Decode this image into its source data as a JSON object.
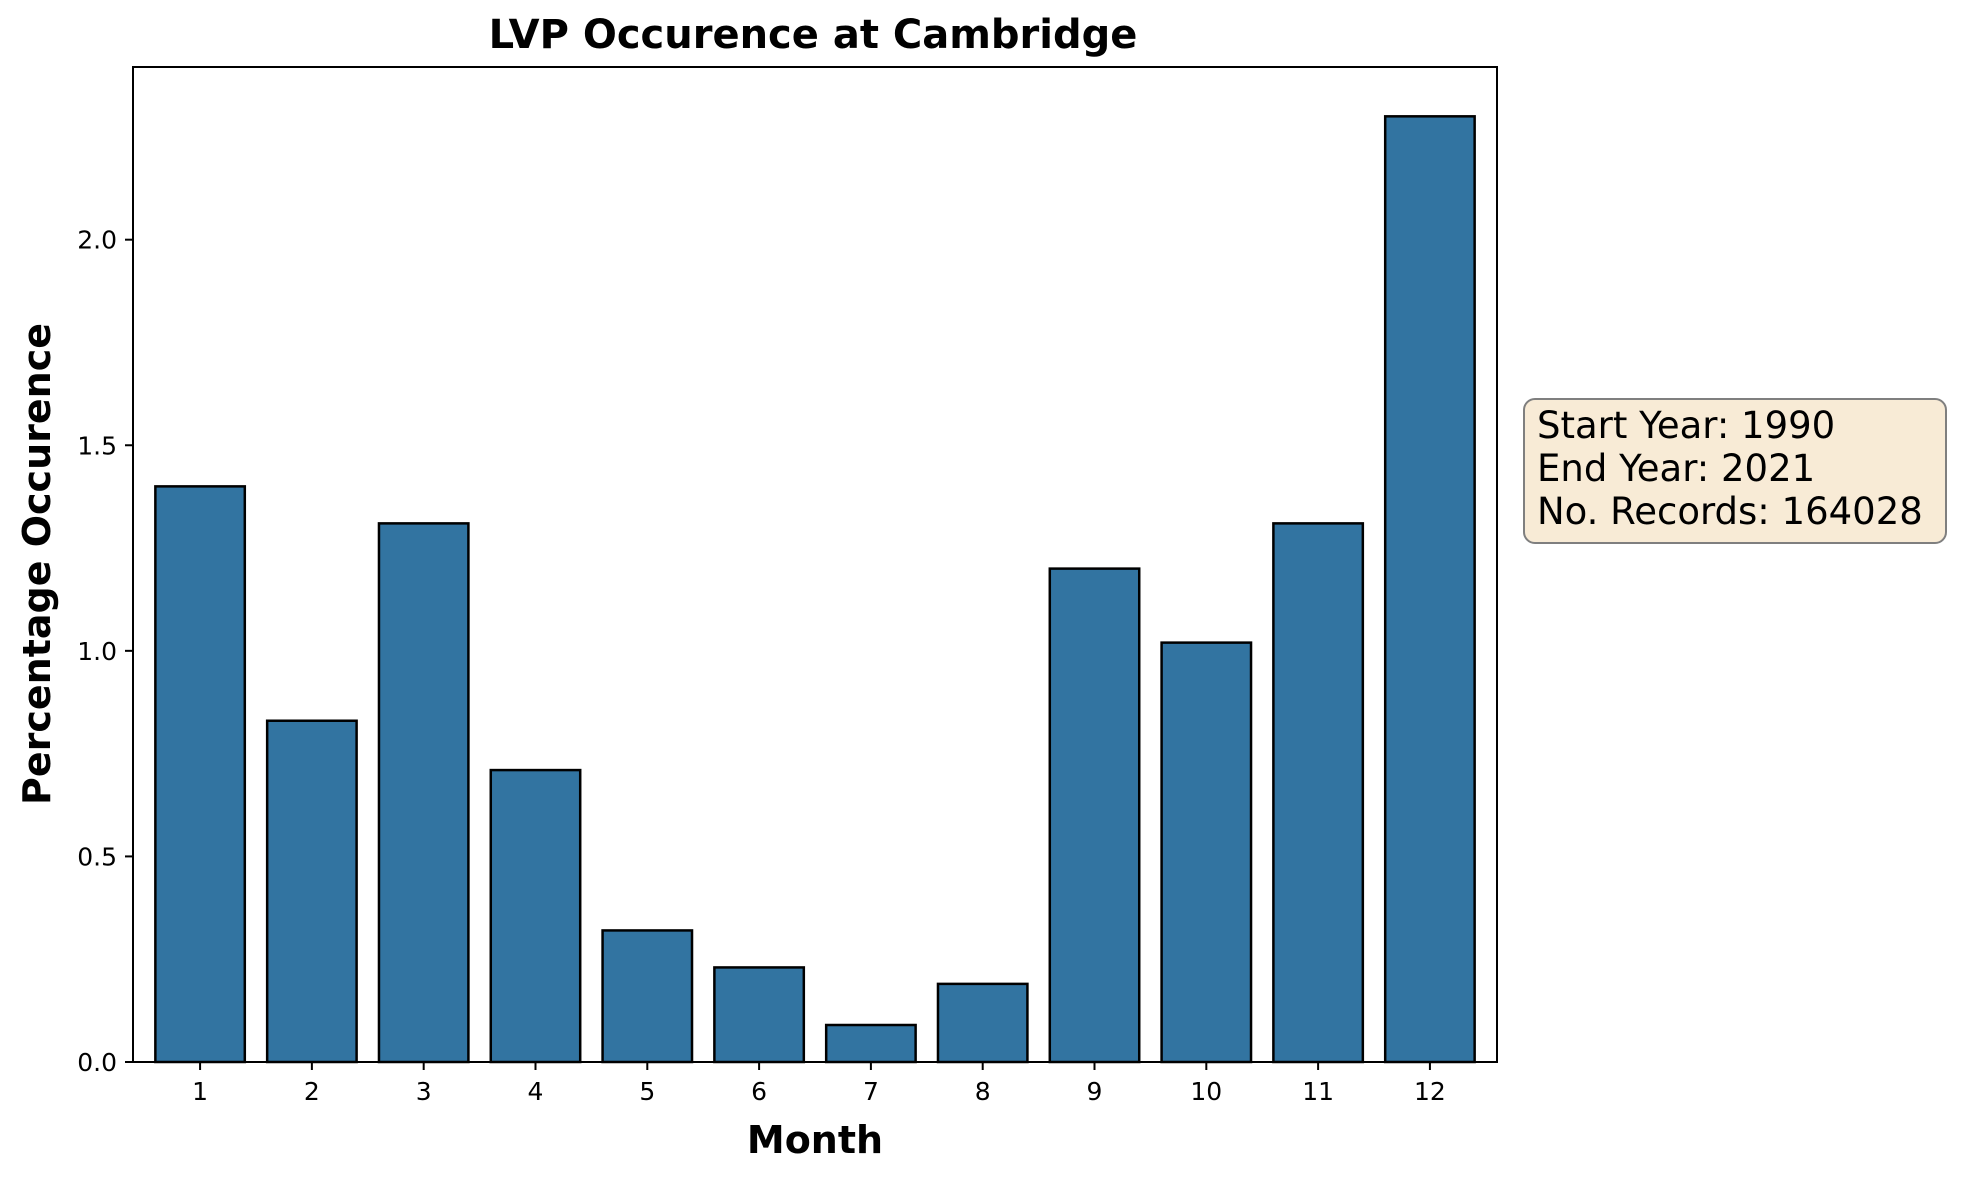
{
  "chart_data": {
    "type": "bar",
    "title": "LVP Occurence at Cambridge",
    "xlabel": "Month",
    "ylabel": "Percentage Occurence",
    "categories": [
      "1",
      "2",
      "3",
      "4",
      "5",
      "6",
      "7",
      "8",
      "9",
      "10",
      "11",
      "12"
    ],
    "values": [
      1.4,
      0.83,
      1.31,
      0.71,
      0.32,
      0.23,
      0.09,
      0.19,
      1.2,
      1.02,
      1.31,
      2.3
    ],
    "ylim": [
      0,
      2.42
    ],
    "yticks": [
      0.0,
      0.5,
      1.0,
      1.5,
      2.0
    ],
    "ytick_labels": [
      "0.0",
      "0.5",
      "1.0",
      "1.5",
      "2.0"
    ],
    "grid": false,
    "bar_color": "#3274a1",
    "bar_edge_color": "#000000",
    "annotation": {
      "lines": [
        "Start Year: 1990",
        "End Year: 2021",
        "No. Records: 164028"
      ],
      "background": "#f8ebd6",
      "border_color": "#7f7f7f"
    }
  }
}
